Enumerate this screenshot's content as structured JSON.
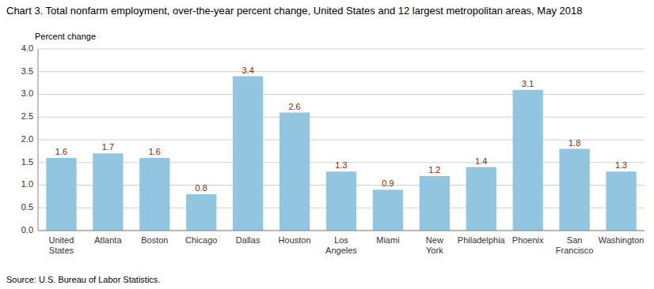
{
  "chart_data": {
    "type": "bar",
    "title": "Chart 3. Total nonfarm employment, over-the-year percent change, United States and 12 largest metropolitan areas, May 2018",
    "ylabel": "Percent change",
    "source": "Source: U.S. Bureau of Labor Statistics.",
    "categories": [
      "United\nStates",
      "Atlanta",
      "Boston",
      "Chicago",
      "Dallas",
      "Houston",
      "Los\nAngeles",
      "Miami",
      "New\nYork",
      "Philadelphia",
      "Phoenix",
      "San\nFrancisco",
      "Washington"
    ],
    "values": [
      1.6,
      1.7,
      1.6,
      0.8,
      3.4,
      2.6,
      1.3,
      0.9,
      1.2,
      1.4,
      3.1,
      1.8,
      1.3
    ],
    "color": "#92C5E0",
    "ylim": [
      0.0,
      4.0
    ],
    "yticks": [
      {
        "value": 0,
        "label": "0.0"
      },
      0.5,
      {
        "value": 1,
        "label": "1.0"
      },
      1.5,
      {
        "value": 2,
        "label": "2.0"
      },
      2.5,
      {
        "value": 3,
        "label": "3.0"
      },
      3.5,
      {
        "value": 4,
        "label": "4.0"
      }
    ],
    "grid": true,
    "data_labels": true
  }
}
